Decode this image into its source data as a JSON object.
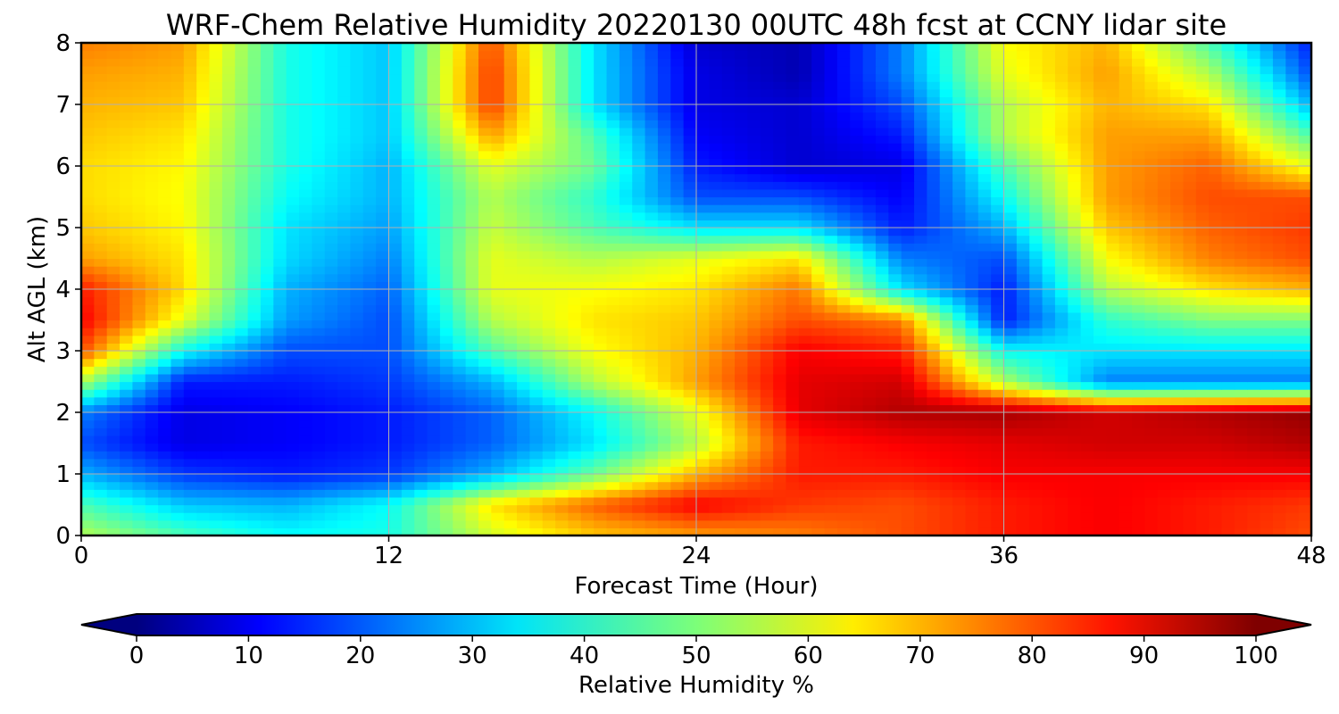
{
  "chart_data": {
    "type": "heatmap",
    "title": "WRF-Chem Relative Humidity 20220130 00UTC 48h fcst at CCNY lidar site",
    "xlabel": "Forecast Time (Hour)",
    "ylabel": "Alt AGL (km)",
    "xlim": [
      0,
      48
    ],
    "ylim": [
      0,
      8
    ],
    "xticks": [
      "0",
      "12",
      "24",
      "36",
      "48"
    ],
    "yticks": [
      "0",
      "1",
      "2",
      "3",
      "4",
      "5",
      "6",
      "7",
      "8"
    ],
    "grid": true,
    "colormap": "jet",
    "colorbar": {
      "label": "Relative Humidity %",
      "min": 0,
      "max": 100,
      "ticks": [
        "0",
        "10",
        "20",
        "30",
        "40",
        "50",
        "60",
        "70",
        "80",
        "90",
        "100"
      ],
      "extend": "both",
      "orientation": "horizontal"
    },
    "x": [
      0,
      4,
      8,
      12,
      16,
      20,
      24,
      28,
      32,
      36,
      40,
      44,
      48
    ],
    "y": [
      0,
      0.5,
      1,
      1.5,
      2,
      2.5,
      3,
      3.5,
      4,
      4.5,
      5,
      5.5,
      6,
      6.5,
      7,
      7.5,
      8
    ],
    "values": [
      [
        55,
        45,
        38,
        40,
        58,
        68,
        72,
        75,
        80,
        85,
        88,
        85,
        80
      ],
      [
        45,
        32,
        30,
        38,
        65,
        78,
        88,
        82,
        80,
        85,
        88,
        85,
        82
      ],
      [
        30,
        18,
        15,
        18,
        30,
        48,
        70,
        85,
        85,
        88,
        88,
        88,
        88
      ],
      [
        20,
        10,
        12,
        15,
        22,
        35,
        55,
        85,
        88,
        90,
        92,
        92,
        95
      ],
      [
        25,
        10,
        12,
        15,
        22,
        38,
        60,
        90,
        95,
        96,
        92,
        95,
        98
      ],
      [
        55,
        15,
        15,
        18,
        30,
        55,
        72,
        90,
        92,
        55,
        25,
        25,
        25
      ],
      [
        80,
        38,
        20,
        20,
        45,
        62,
        70,
        88,
        85,
        38,
        35,
        35,
        35
      ],
      [
        88,
        60,
        28,
        20,
        55,
        65,
        68,
        80,
        75,
        15,
        42,
        50,
        50
      ],
      [
        85,
        66,
        30,
        22,
        60,
        62,
        65,
        76,
        35,
        15,
        55,
        65,
        70
      ],
      [
        72,
        65,
        34,
        25,
        60,
        55,
        60,
        65,
        25,
        20,
        62,
        75,
        80
      ],
      [
        68,
        63,
        35,
        28,
        57,
        45,
        35,
        35,
        15,
        30,
        68,
        78,
        82
      ],
      [
        66,
        62,
        38,
        30,
        55,
        42,
        20,
        20,
        12,
        38,
        72,
        80,
        80
      ],
      [
        66,
        63,
        40,
        30,
        60,
        48,
        15,
        8,
        10,
        45,
        72,
        78,
        60
      ],
      [
        68,
        65,
        40,
        32,
        72,
        45,
        12,
        8,
        15,
        55,
        72,
        72,
        45
      ],
      [
        70,
        68,
        40,
        32,
        82,
        35,
        10,
        8,
        20,
        55,
        70,
        65,
        30
      ],
      [
        72,
        70,
        40,
        32,
        82,
        35,
        10,
        5,
        25,
        60,
        72,
        55,
        20
      ],
      [
        75,
        72,
        40,
        32,
        80,
        35,
        8,
        5,
        25,
        62,
        70,
        45,
        15
      ]
    ]
  }
}
